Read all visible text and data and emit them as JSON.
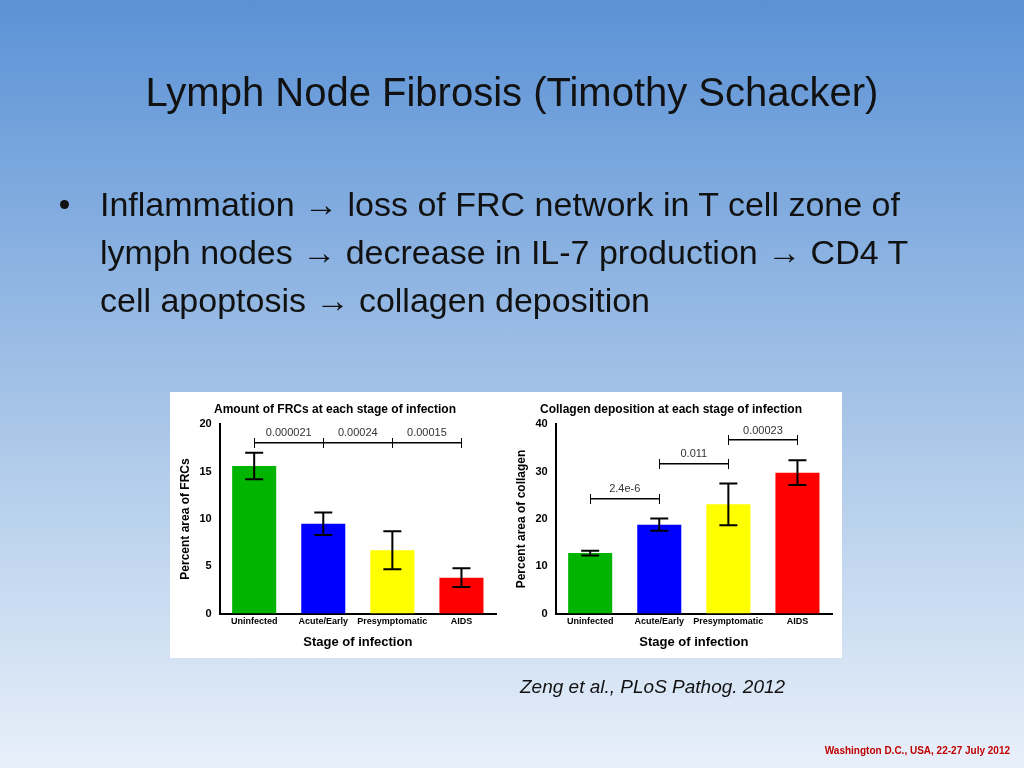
{
  "chart_data": [
    {
      "type": "bar",
      "title": "Amount of FRCs at each stage of infection",
      "xlabel": "Stage of infection",
      "ylabel": "Percent area of FRCs",
      "categories": [
        "Uninfected",
        "Acute/Early",
        "Presymptomatic",
        "AIDS"
      ],
      "values": [
        15.6,
        9.5,
        6.7,
        3.8
      ],
      "errors": [
        1.4,
        1.2,
        2.0,
        1.0
      ],
      "colors": [
        "#00b400",
        "#0000ff",
        "#ffff00",
        "#ff0000"
      ],
      "ylim": [
        0,
        20
      ],
      "yticks": [
        0,
        5,
        10,
        15,
        20
      ],
      "grid": false,
      "legend": false,
      "annotations": [
        "Lymph Node Fibrosis (Timothy Schacker)",
        "Inflammation → loss of FRC network in T cell zone of lymph nodes → decrease in IL-7 production → CD4 T cell apoptosis → collagen deposition",
        "0.000021",
        "0.00024",
        "0.00015"
      ]
    },
    {
      "type": "bar",
      "title": "Collagen deposition at each stage of infection",
      "xlabel": "Stage of infection",
      "ylabel": "Percent area of collagen",
      "categories": [
        "Uninfected",
        "Acute/Early",
        "Presymptomatic",
        "AIDS"
      ],
      "values": [
        12.8,
        18.8,
        23.1,
        29.8
      ],
      "errors": [
        0.5,
        1.3,
        4.4,
        2.6
      ],
      "colors": [
        "#00b400",
        "#0000ff",
        "#ffff00",
        "#ff0000"
      ],
      "ylim": [
        0,
        40
      ],
      "yticks": [
        0,
        10,
        20,
        30,
        40
      ],
      "grid": false,
      "legend": false,
      "annotations": [
        "2.4e-6",
        "0.011",
        "0.00023",
        "Zeng et al., PLoS Pathog. 2012",
        "Washington D.C., USA, 22-27 July 2012"
      ]
    }
  ]
}
